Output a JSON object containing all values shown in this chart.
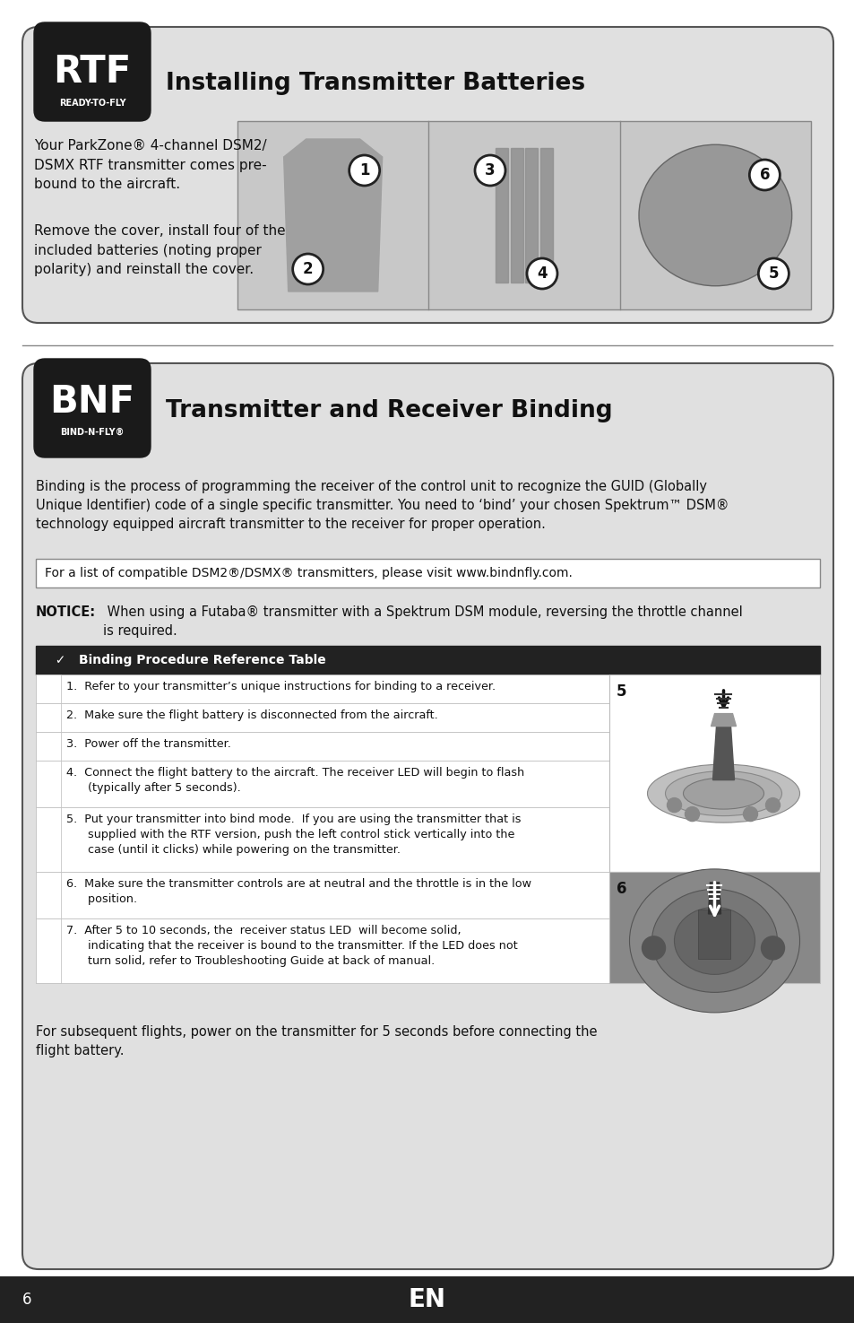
{
  "page_bg": "#ffffff",
  "section1": {
    "title": "Installing Transmitter Batteries",
    "body1": "Your ParkZone® 4-channel DSM2/\nDSMX RTF transmitter comes pre-\nbound to the aircraft.",
    "body2": "Remove the cover, install four of the\nincluded batteries (noting proper\npolarity) and reinstall the cover."
  },
  "section2": {
    "title": "Transmitter and Receiver Binding",
    "intro": "Binding is the process of programming the receiver of the control unit to recognize the GUID (Globally\nUnique Identifier) code of a single specific transmitter. You need to ‘bind’ your chosen Spektrum™ DSM®\ntechnology equipped aircraft transmitter to the receiver for proper operation.",
    "info_box": "For a list of compatible DSM2®/DSMX® transmitters, please visit www.bindnfly.com.",
    "notice_bold": "NOTICE:",
    "notice_text": " When using a Futaba® transmitter with a Spektrum DSM module, reversing the throttle channel\nis required.",
    "table_header": "  ✓   Binding Procedure Reference Table",
    "table_rows": [
      "1.  Refer to your transmitter’s unique instructions for binding to a receiver.",
      "2.  Make sure the flight battery is disconnected from the aircraft.",
      "3.  Power off the transmitter.",
      "4.  Connect the flight battery to the aircraft. The receiver LED will begin to flash\n      (typically after 5 seconds).",
      "5.  Put your transmitter into bind mode.  If you are using the transmitter that is\n      supplied with the RTF version, push the left control stick vertically into the\n      case (until it clicks) while powering on the transmitter.",
      "6.  Make sure the transmitter controls are at neutral and the throttle is in the low\n      position.",
      "7.  After 5 to 10 seconds, the  receiver status LED  will become solid,\n      indicating that the receiver is bound to the transmitter. If the LED does not\n      turn solid, refer to Troubleshooting Guide at back of manual."
    ],
    "footer": "For subsequent flights, power on the transmitter for 5 seconds before connecting the\nflight battery."
  },
  "page_number": "6",
  "page_lang": "EN"
}
